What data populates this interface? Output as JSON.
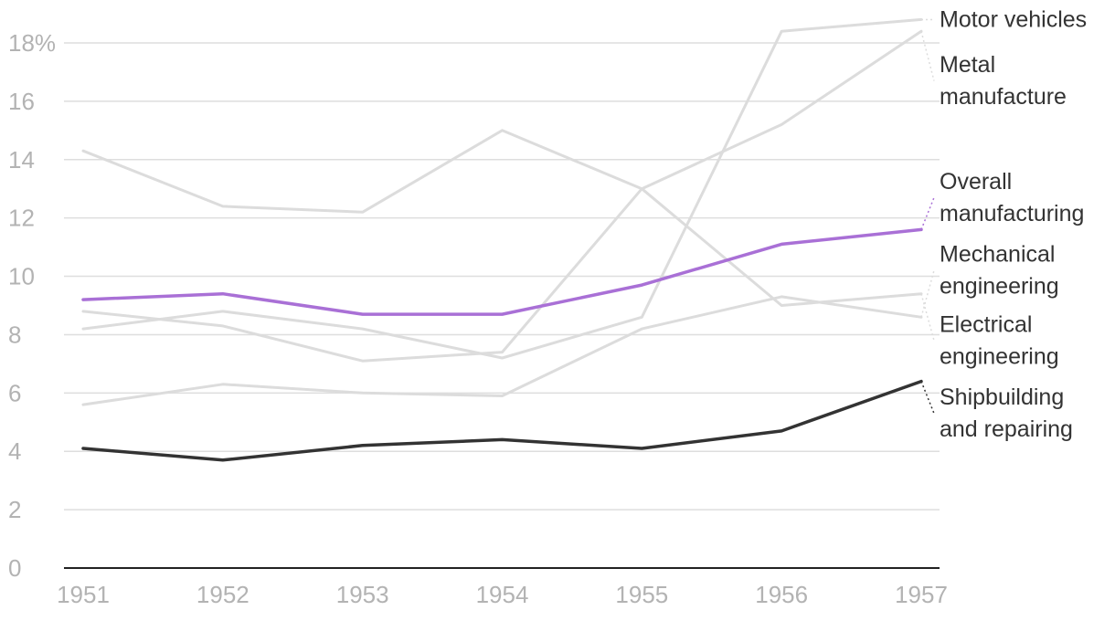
{
  "chart_data": {
    "type": "line",
    "title": "",
    "xlabel": "",
    "ylabel": "",
    "y_unit_suffix": "%",
    "x": [
      1951,
      1952,
      1953,
      1954,
      1955,
      1956,
      1957
    ],
    "x_tick_labels": [
      "1951",
      "1952",
      "1953",
      "1954",
      "1955",
      "1956",
      "1957"
    ],
    "y_ticks": [
      0,
      2,
      4,
      6,
      8,
      10,
      12,
      14,
      16,
      18
    ],
    "y_tick_labels": [
      "0",
      "2",
      "4",
      "6",
      "8",
      "10",
      "12",
      "14",
      "16",
      "18%"
    ],
    "ylim": [
      0,
      18
    ],
    "grid": true,
    "legend": "direct labels at right end of lines",
    "series": [
      {
        "name": "Motor vehicles",
        "label_lines": [
          "Motor vehicles"
        ],
        "color": "#dcdcdc",
        "highlight": false,
        "label_value": 18.8,
        "values": [
          8.2,
          8.8,
          8.2,
          7.2,
          8.6,
          18.4,
          18.8
        ]
      },
      {
        "name": "Metal manufacture",
        "label_lines": [
          "Metal",
          "manufacture"
        ],
        "color": "#dcdcdc",
        "highlight": false,
        "label_value": 16.7,
        "values": [
          14.3,
          12.4,
          12.2,
          15.0,
          13.0,
          15.2,
          18.4
        ]
      },
      {
        "name": "Overall manufacturing",
        "label_lines": [
          "Overall",
          "manufacturing"
        ],
        "color": "#a970d6",
        "highlight": true,
        "label_value": 12.7,
        "values": [
          9.2,
          9.4,
          8.7,
          8.7,
          9.7,
          11.1,
          11.6
        ]
      },
      {
        "name": "Mechanical engineering",
        "label_lines": [
          "Mechanical",
          "engineering"
        ],
        "color": "#dcdcdc",
        "highlight": false,
        "label_value": 10.2,
        "values": [
          5.6,
          6.3,
          6.0,
          5.9,
          8.2,
          9.3,
          8.6
        ]
      },
      {
        "name": "Electrical engineering",
        "label_lines": [
          "Electrical",
          "engineering"
        ],
        "color": "#dcdcdc",
        "highlight": false,
        "label_value": 7.8,
        "values": [
          8.8,
          8.3,
          7.1,
          7.4,
          13.0,
          9.0,
          9.4
        ]
      },
      {
        "name": "Shipbuilding and repairing",
        "label_lines": [
          "Shipbuilding",
          "and repairing"
        ],
        "color": "#333333",
        "highlight": true,
        "label_value": 5.3,
        "values": [
          4.1,
          3.7,
          4.2,
          4.4,
          4.1,
          4.7,
          6.4
        ]
      }
    ]
  }
}
